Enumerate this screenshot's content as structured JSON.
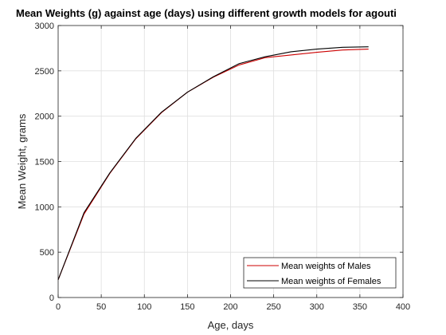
{
  "chart_data": {
    "type": "line",
    "title": "Mean Weights (g) against age (days) using different growth models for agouti",
    "xlabel": "Age, days",
    "ylabel": "Mean Weight, grams",
    "xlim": [
      0,
      400
    ],
    "ylim": [
      0,
      3000
    ],
    "xticks": [
      0,
      50,
      100,
      150,
      200,
      250,
      300,
      350,
      400
    ],
    "yticks": [
      0,
      500,
      1000,
      1500,
      2000,
      2500,
      3000
    ],
    "grid": true,
    "legend_position": "bottom-right",
    "series": [
      {
        "name": "Mean weights of Males",
        "color": "#cc0000",
        "x": [
          0,
          30,
          60,
          90,
          120,
          150,
          180,
          210,
          240,
          270,
          300,
          330,
          360
        ],
        "y": [
          195,
          920,
          1370,
          1750,
          2040,
          2265,
          2430,
          2565,
          2645,
          2675,
          2705,
          2730,
          2740
        ]
      },
      {
        "name": "Mean weights of Females",
        "color": "#000000",
        "x": [
          0,
          30,
          60,
          90,
          120,
          150,
          180,
          210,
          240,
          270,
          300,
          330,
          360
        ],
        "y": [
          195,
          935,
          1375,
          1755,
          2045,
          2265,
          2435,
          2580,
          2655,
          2710,
          2740,
          2760,
          2765
        ]
      }
    ]
  }
}
